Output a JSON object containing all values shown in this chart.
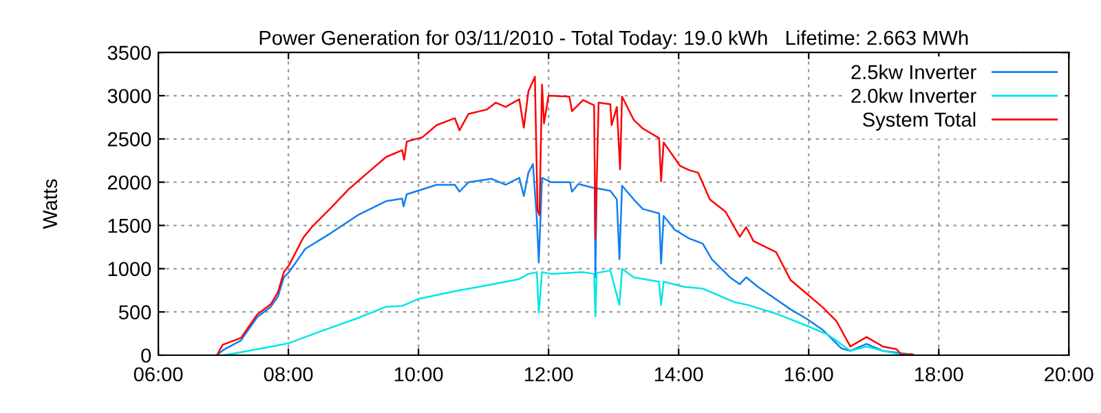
{
  "chart_data": {
    "type": "line",
    "title": "Power Generation for 03/11/2010 - Total Today: 19.0 kWh   Lifetime: 2.663 MWh",
    "ylabel": "Watts",
    "xlim": [
      6,
      20
    ],
    "xticks": [
      {
        "value": 6,
        "label": "06:00"
      },
      {
        "value": 8,
        "label": "08:00"
      },
      {
        "value": 10,
        "label": "10:00"
      },
      {
        "value": 12,
        "label": "12:00"
      },
      {
        "value": 14,
        "label": "14:00"
      },
      {
        "value": 16,
        "label": "16:00"
      },
      {
        "value": 18,
        "label": "18:00"
      },
      {
        "value": 20,
        "label": "20:00"
      }
    ],
    "ylim": [
      0,
      3500
    ],
    "yticks": [
      0,
      500,
      1000,
      1500,
      2000,
      2500,
      3000,
      3500
    ],
    "grid": true,
    "legend": "top right",
    "line_style": "solid",
    "series": [
      {
        "name": "2.5kw Inverter",
        "color": "#0f7ff0",
        "x": [
          6.9,
          7.0,
          7.27,
          7.52,
          7.73,
          7.84,
          7.93,
          8.01,
          8.26,
          8.65,
          9.07,
          9.5,
          9.75,
          9.77,
          9.82,
          10.28,
          10.56,
          10.63,
          10.77,
          11.12,
          11.34,
          11.55,
          11.62,
          11.69,
          11.76,
          11.82,
          11.85,
          11.9,
          12.04,
          12.33,
          12.36,
          12.46,
          12.71,
          12.72,
          12.74,
          12.95,
          13.05,
          13.09,
          13.13,
          13.31,
          13.45,
          13.7,
          13.73,
          13.77,
          13.94,
          14.16,
          14.37,
          14.51,
          14.79,
          14.94,
          15.04,
          15.22,
          15.72,
          15.97,
          16.22,
          16.5,
          16.64,
          16.89,
          17.14,
          17.35,
          17.57,
          17.6
        ],
        "values": [
          0,
          60,
          170,
          440,
          560,
          680,
          900,
          960,
          1230,
          1410,
          1620,
          1780,
          1810,
          1720,
          1860,
          1970,
          1970,
          1890,
          2000,
          2040,
          1970,
          2050,
          1840,
          2110,
          2210,
          1570,
          1070,
          2050,
          2000,
          2000,
          1890,
          1980,
          1930,
          900,
          1930,
          1900,
          1800,
          1110,
          1960,
          1800,
          1690,
          1640,
          1060,
          1610,
          1450,
          1350,
          1290,
          1110,
          900,
          820,
          900,
          790,
          530,
          420,
          290,
          80,
          50,
          130,
          50,
          30,
          10,
          0
        ]
      },
      {
        "name": "2.0kw Inverter",
        "color": "#00e6e6",
        "x": [
          7.0,
          7.24,
          7.67,
          8.01,
          8.51,
          9.07,
          9.5,
          9.75,
          10.0,
          10.56,
          11.0,
          11.55,
          11.69,
          11.82,
          11.85,
          11.9,
          12.04,
          12.53,
          12.7,
          12.72,
          12.74,
          12.95,
          13.09,
          13.13,
          13.31,
          13.7,
          13.73,
          13.77,
          14.09,
          14.37,
          14.87,
          15.07,
          15.5,
          15.97,
          16.29,
          16.64,
          16.89,
          17.14,
          17.35,
          17.6,
          17.62
        ],
        "values": [
          0,
          30,
          90,
          140,
          280,
          430,
          560,
          570,
          650,
          740,
          800,
          880,
          940,
          960,
          490,
          960,
          940,
          960,
          940,
          450,
          950,
          980,
          580,
          1000,
          900,
          850,
          580,
          850,
          790,
          770,
          610,
          580,
          480,
          340,
          240,
          50,
          100,
          50,
          20,
          10,
          0
        ]
      },
      {
        "name": "System Total",
        "color": "#ff0000",
        "x": [
          6.9,
          6.99,
          7.27,
          7.52,
          7.73,
          7.84,
          7.93,
          8.01,
          8.23,
          8.37,
          8.65,
          8.93,
          9.22,
          9.5,
          9.75,
          9.78,
          9.82,
          10.06,
          10.28,
          10.56,
          10.63,
          10.77,
          11.05,
          11.19,
          11.34,
          11.55,
          11.62,
          11.69,
          11.79,
          11.83,
          11.86,
          11.9,
          11.93,
          12.0,
          12.32,
          12.36,
          12.53,
          12.7,
          12.72,
          12.77,
          12.95,
          12.97,
          13.05,
          13.1,
          13.13,
          13.31,
          13.45,
          13.7,
          13.73,
          13.77,
          14.02,
          14.16,
          14.3,
          14.48,
          14.72,
          14.94,
          15.04,
          15.15,
          15.5,
          15.72,
          15.97,
          16.22,
          16.43,
          16.64,
          16.89,
          17.14,
          17.35,
          17.42,
          17.6,
          17.62
        ],
        "values": [
          0,
          120,
          200,
          470,
          590,
          730,
          960,
          1040,
          1360,
          1490,
          1700,
          1920,
          2110,
          2290,
          2370,
          2260,
          2470,
          2520,
          2660,
          2740,
          2600,
          2790,
          2840,
          2920,
          2870,
          2960,
          2630,
          3050,
          3220,
          1680,
          1620,
          3130,
          2680,
          3000,
          2990,
          2820,
          2950,
          2890,
          1350,
          2920,
          2900,
          2660,
          2870,
          2150,
          2990,
          2720,
          2620,
          2510,
          2010,
          2460,
          2190,
          2140,
          2110,
          1800,
          1660,
          1370,
          1480,
          1320,
          1190,
          870,
          710,
          550,
          390,
          100,
          210,
          100,
          70,
          10,
          10,
          0
        ]
      }
    ]
  }
}
